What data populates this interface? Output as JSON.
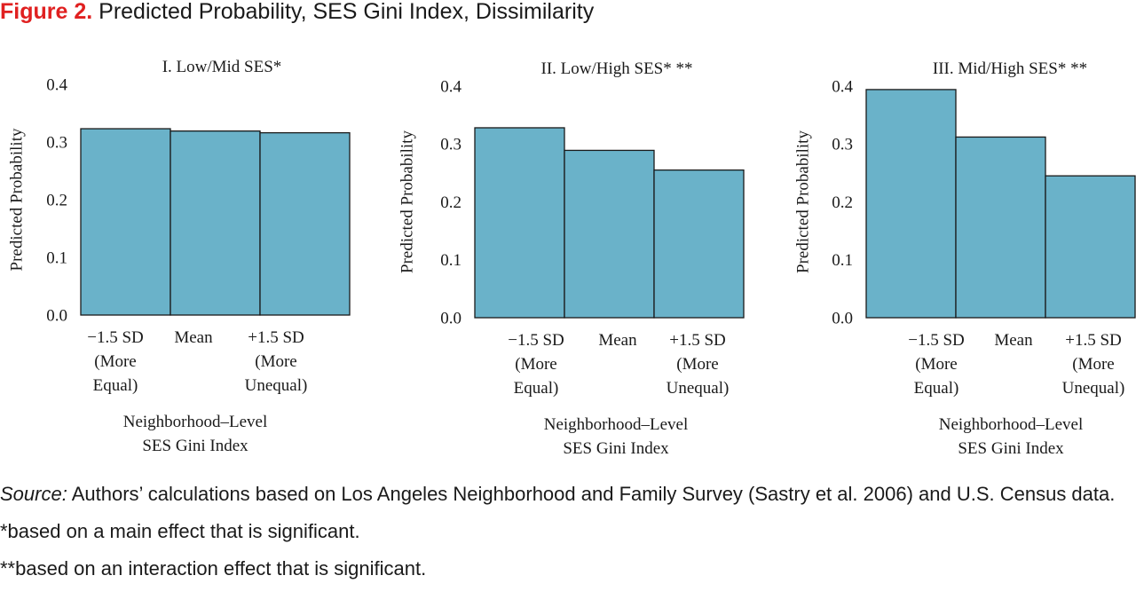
{
  "figure": {
    "label": "Figure 2.",
    "title": "Predicted Probability, SES Gini Index, Dissimilarity"
  },
  "colors": {
    "bar_fill": "#6AB2C9",
    "bar_stroke": "#1a1a1a",
    "figure_label": "#E02020"
  },
  "chart_data": [
    {
      "type": "bar",
      "title": "I. Low/Mid SES*",
      "ylabel": "Predicted Probability",
      "xlabel": [
        "Neighborhood–Level",
        "SES Gini Index"
      ],
      "categories": [
        [
          "−1.5 SD",
          "(More",
          "Equal)"
        ],
        [
          "Mean"
        ],
        [
          "+1.5 SD",
          "(More",
          "Unequal)"
        ]
      ],
      "values": [
        0.323,
        0.319,
        0.316
      ],
      "ylim": [
        0,
        0.4
      ],
      "yticks": [
        "0.0",
        "0.1",
        "0.2",
        "0.3",
        "0.4"
      ],
      "grid": false
    },
    {
      "type": "bar",
      "title": "II. Low/High SES* **",
      "ylabel": "Predicted Probability",
      "xlabel": [
        "Neighborhood–Level",
        "SES Gini Index"
      ],
      "categories": [
        [
          "−1.5 SD",
          "(More",
          "Equal)"
        ],
        [
          "Mean"
        ],
        [
          "+1.5 SD",
          "(More",
          "Unequal)"
        ]
      ],
      "values": [
        0.328,
        0.289,
        0.255
      ],
      "ylim": [
        0,
        0.4
      ],
      "yticks": [
        "0.0",
        "0.1",
        "0.2",
        "0.3",
        "0.4"
      ],
      "grid": false
    },
    {
      "type": "bar",
      "title": "III. Mid/High SES* **",
      "ylabel": "Predicted Probability",
      "xlabel": [
        "Neighborhood–Level",
        "SES Gini Index"
      ],
      "categories": [
        [
          "−1.5 SD",
          "(More",
          "Equal)"
        ],
        [
          "Mean"
        ],
        [
          "+1.5 SD",
          "(More",
          "Unequal)"
        ]
      ],
      "values": [
        0.394,
        0.312,
        0.245
      ],
      "ylim": [
        0,
        0.4
      ],
      "yticks": [
        "0.0",
        "0.1",
        "0.2",
        "0.3",
        "0.4"
      ],
      "grid": false
    }
  ],
  "source": {
    "label": "Source:",
    "text": " Authors’ calculations based on Los Angeles Neighborhood and Family Survey (Sastry et al. 2006) and U.S. Census data.",
    "notes": [
      "*based on a main effect that is significant.",
      "**based on an interaction effect that is significant."
    ]
  }
}
